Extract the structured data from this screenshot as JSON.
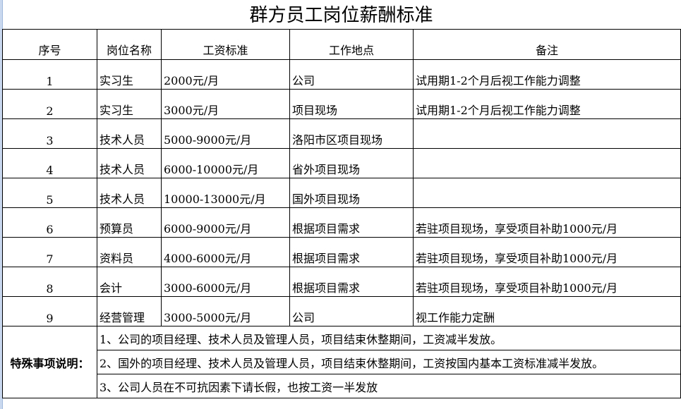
{
  "title": "群方员工岗位薪酬标准",
  "headers": [
    "序号",
    "岗位名称",
    "工资标准",
    "工作地点",
    "备注"
  ],
  "rows": [
    {
      "no": "1",
      "position": "实习生",
      "salary": "2000元/月",
      "location": "公司",
      "remark": "试用期1-2个月后视工作能力调整"
    },
    {
      "no": "2",
      "position": "实习生",
      "salary": "3000元/月",
      "location": "项目现场",
      "remark": "试用期1-2个月后视工作能力调整"
    },
    {
      "no": "3",
      "position": "技术人员",
      "salary": "5000-9000元/月",
      "location": "洛阳市区项目现场",
      "remark": ""
    },
    {
      "no": "4",
      "position": "技术人员",
      "salary": "6000-10000元/月",
      "location": "省外项目现场",
      "remark": ""
    },
    {
      "no": "5",
      "position": "技术人员",
      "salary": "10000-13000元/月",
      "location": "国外项目现场",
      "remark": ""
    },
    {
      "no": "6",
      "position": "预算员",
      "salary": "6000-9000元/月",
      "location": "根据项目需求",
      "remark": "若驻项目现场，享受项目补助1000元/月"
    },
    {
      "no": "7",
      "position": "资料员",
      "salary": "4000-6000元/月",
      "location": "根据项目需求",
      "remark": "若驻项目现场，享受项目补助1000元/月"
    },
    {
      "no": "8",
      "position": "会计",
      "salary": "3000-6000元/月",
      "location": "根据项目需求",
      "remark": "若驻项目现场，享受项目补助1000元/月"
    },
    {
      "no": "9",
      "position": "经营管理",
      "salary": "3000-5000元/月",
      "location": "公司",
      "remark": "视工作能力定酬"
    }
  ],
  "notes": {
    "label": "特殊事项说明：",
    "items": [
      "1、公司的项目经理、技术人员及管理人员，项目结束休整期间，工资减半发放。",
      "2、国外的项目经理、技术人员及管理人员，项目结束休整期间，工资按国内基本工资标准减半发放。",
      "3、公司人员在不可抗因素下请长假，也按工资一半发放"
    ]
  }
}
